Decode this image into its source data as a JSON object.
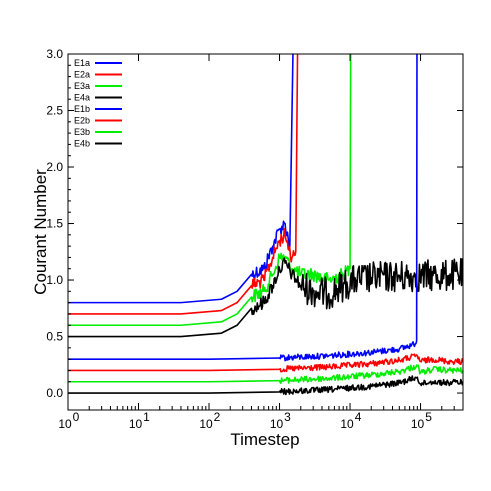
{
  "chart_data": {
    "type": "line",
    "xlabel": "Timestep",
    "ylabel": "Courant Number",
    "x_scale": "log",
    "xlim": [
      1,
      400000
    ],
    "ylim": [
      -0.15,
      3.0
    ],
    "x_ticks": [
      {
        "value": 1,
        "base": "10",
        "exp": "0"
      },
      {
        "value": 10,
        "base": "10",
        "exp": "1"
      },
      {
        "value": 100,
        "base": "10",
        "exp": "2"
      },
      {
        "value": 1000,
        "base": "10",
        "exp": "3"
      },
      {
        "value": 10000,
        "base": "10",
        "exp": "4"
      },
      {
        "value": 100000,
        "base": "10",
        "exp": "5"
      }
    ],
    "y_ticks": [
      {
        "value": 0.0,
        "label": "0.0"
      },
      {
        "value": 0.5,
        "label": "0.5"
      },
      {
        "value": 1.0,
        "label": "1.0"
      },
      {
        "value": 1.5,
        "label": "1.5"
      },
      {
        "value": 2.0,
        "label": "2.0"
      },
      {
        "value": 2.5,
        "label": "2.5"
      },
      {
        "value": 3.0,
        "label": "3.0"
      }
    ],
    "grid": false,
    "legend_position": "top-left",
    "series": [
      {
        "name": "E1a",
        "color": "#0000ff",
        "x": [
          1,
          40,
          150,
          250,
          400,
          600,
          800,
          1000,
          1200,
          1400,
          1550,
          1600
        ],
        "y": [
          0.8,
          0.8,
          0.83,
          0.9,
          1.05,
          1.1,
          1.3,
          1.45,
          1.5,
          1.3,
          3.0,
          3.0
        ]
      },
      {
        "name": "E2a",
        "color": "#ff0000",
        "x": [
          1,
          40,
          150,
          250,
          400,
          600,
          800,
          1000,
          1200,
          1500,
          1700,
          1800
        ],
        "y": [
          0.7,
          0.7,
          0.73,
          0.8,
          0.95,
          1.0,
          1.2,
          1.35,
          1.4,
          1.2,
          1.25,
          3.0
        ]
      },
      {
        "name": "E3a",
        "color": "#00ee00",
        "x": [
          1,
          40,
          150,
          250,
          400,
          600,
          800,
          1000,
          1200,
          1500,
          2000,
          3000,
          5000,
          8000,
          10000,
          10200
        ],
        "y": [
          0.6,
          0.6,
          0.63,
          0.7,
          0.85,
          0.9,
          1.05,
          1.2,
          1.2,
          1.1,
          1.05,
          1.05,
          1.0,
          1.05,
          1.1,
          3.0
        ]
      },
      {
        "name": "E4a",
        "color": "#000000",
        "x": [
          1,
          40,
          150,
          250,
          400,
          600,
          800,
          1000,
          1200,
          1500,
          2000,
          3000,
          5000,
          8000,
          12000,
          20000,
          40000,
          80000,
          150000,
          250000,
          400000
        ],
        "y": [
          0.5,
          0.5,
          0.53,
          0.6,
          0.75,
          0.8,
          0.95,
          1.1,
          1.15,
          1.05,
          0.95,
          0.9,
          0.88,
          0.95,
          1.0,
          1.02,
          1.03,
          1.03,
          1.04,
          1.04,
          1.05
        ]
      },
      {
        "name": "E1b",
        "color": "#0000ff",
        "x": [
          1,
          100,
          1000,
          5000,
          20000,
          50000,
          80000,
          88000,
          89000,
          90000
        ],
        "y": [
          0.3,
          0.3,
          0.31,
          0.33,
          0.36,
          0.39,
          0.43,
          0.46,
          3.0,
          3.0
        ]
      },
      {
        "name": "E2b",
        "color": "#ff0000",
        "x": [
          1,
          100,
          1000,
          5000,
          20000,
          50000,
          90000,
          100000,
          150000,
          250000,
          400000
        ],
        "y": [
          0.2,
          0.2,
          0.21,
          0.23,
          0.26,
          0.29,
          0.33,
          0.28,
          0.3,
          0.28,
          0.28
        ]
      },
      {
        "name": "E3b",
        "color": "#00ee00",
        "x": [
          1,
          100,
          1000,
          5000,
          20000,
          50000,
          90000,
          100000,
          150000,
          250000,
          400000
        ],
        "y": [
          0.1,
          0.1,
          0.11,
          0.13,
          0.16,
          0.19,
          0.24,
          0.18,
          0.21,
          0.2,
          0.2
        ]
      },
      {
        "name": "E4b",
        "color": "#000000",
        "x": [
          1,
          100,
          1000,
          5000,
          20000,
          50000,
          90000,
          100000,
          150000,
          250000,
          400000
        ],
        "y": [
          0.0,
          0.0,
          0.01,
          0.03,
          0.06,
          0.09,
          0.14,
          0.08,
          0.1,
          0.09,
          0.1
        ]
      }
    ]
  }
}
